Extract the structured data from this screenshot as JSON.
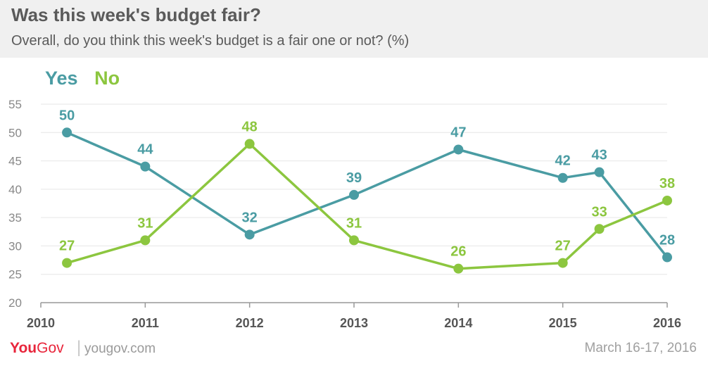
{
  "header": {
    "title": "Was this week's budget fair?",
    "subtitle": "Overall, do you think this week's budget is a fair one or not? (%)"
  },
  "footer": {
    "logo_you": "You",
    "logo_gov": "Gov",
    "url": "yougov.com",
    "date": "March 16-17, 2016"
  },
  "colors": {
    "yes": "#4a9ca3",
    "no": "#8cc63f",
    "grid": "#e6e6e6",
    "axis": "#999999",
    "tick_text": "#888888",
    "year_text": "#555555"
  },
  "chart_data": {
    "type": "line",
    "ylim": [
      20,
      55
    ],
    "yticks": [
      20,
      25,
      30,
      35,
      40,
      45,
      50,
      55
    ],
    "xlim": [
      2010,
      2016
    ],
    "xticks": [
      "2010",
      "2011",
      "2012",
      "2013",
      "2014",
      "2015",
      "2016"
    ],
    "grid": true,
    "legend_position": "top-left",
    "series": [
      {
        "name": "Yes",
        "color": "#4a9ca3",
        "points": [
          {
            "x": 2010.25,
            "y": 50
          },
          {
            "x": 2011,
            "y": 44
          },
          {
            "x": 2012,
            "y": 32
          },
          {
            "x": 2013,
            "y": 39
          },
          {
            "x": 2014,
            "y": 47
          },
          {
            "x": 2015,
            "y": 42
          },
          {
            "x": 2015.35,
            "y": 43
          },
          {
            "x": 2016,
            "y": 28
          }
        ]
      },
      {
        "name": "No",
        "color": "#8cc63f",
        "points": [
          {
            "x": 2010.25,
            "y": 27
          },
          {
            "x": 2011,
            "y": 31
          },
          {
            "x": 2012,
            "y": 48
          },
          {
            "x": 2013,
            "y": 31
          },
          {
            "x": 2014,
            "y": 26
          },
          {
            "x": 2015,
            "y": 27
          },
          {
            "x": 2015.35,
            "y": 33
          },
          {
            "x": 2016,
            "y": 38
          }
        ]
      }
    ]
  }
}
